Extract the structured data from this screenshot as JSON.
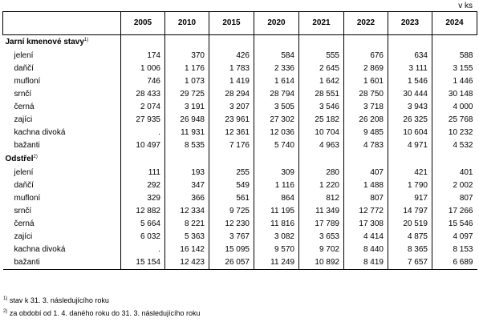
{
  "unit_label": "v ks",
  "years": [
    "2005",
    "2010",
    "2015",
    "2020",
    "2021",
    "2022",
    "2023",
    "2024"
  ],
  "sections": [
    {
      "title": "Jarní kmenové stavy",
      "note_ref": "1)",
      "rows": [
        {
          "label": "jelení",
          "values": [
            "174",
            "370",
            "426",
            "584",
            "555",
            "676",
            "634",
            "588"
          ]
        },
        {
          "label": "daňčí",
          "values": [
            "1 006",
            "1 176",
            "1 783",
            "2 336",
            "2 645",
            "2 869",
            "3 111",
            "3 155"
          ]
        },
        {
          "label": "mufloní",
          "values": [
            "746",
            "1 073",
            "1 419",
            "1 614",
            "1 642",
            "1 601",
            "1 546",
            "1 446"
          ]
        },
        {
          "label": "srnčí",
          "values": [
            "28 433",
            "29 725",
            "28 294",
            "28 794",
            "28 551",
            "28 750",
            "30 444",
            "30 148"
          ]
        },
        {
          "label": "černá",
          "values": [
            "2 074",
            "3 191",
            "3 207",
            "3 505",
            "3 546",
            "3 718",
            "3 943",
            "4 000"
          ]
        },
        {
          "label": "zajíci",
          "values": [
            "27 935",
            "26 948",
            "23 961",
            "27 302",
            "25 182",
            "26 208",
            "26 325",
            "25 768"
          ]
        },
        {
          "label": "kachna divoká",
          "values": [
            ".",
            "11 931",
            "12 361",
            "12 036",
            "10 704",
            "9 485",
            "10 604",
            "10 232"
          ]
        },
        {
          "label": "bažanti",
          "values": [
            "10 497",
            "8 535",
            "7 176",
            "5 740",
            "4 963",
            "4 783",
            "4 971",
            "4 532"
          ]
        }
      ]
    },
    {
      "title": "Odstřel",
      "note_ref": "2)",
      "rows": [
        {
          "label": "jelení",
          "values": [
            "111",
            "193",
            "255",
            "309",
            "280",
            "407",
            "421",
            "401"
          ]
        },
        {
          "label": "daňčí",
          "values": [
            "292",
            "347",
            "549",
            "1 116",
            "1 220",
            "1 488",
            "1 790",
            "2 002"
          ]
        },
        {
          "label": "mufloní",
          "values": [
            "329",
            "366",
            "561",
            "864",
            "812",
            "807",
            "917",
            "807"
          ]
        },
        {
          "label": "srnčí",
          "values": [
            "12 882",
            "12 334",
            "9 725",
            "11 195",
            "11 349",
            "12 772",
            "14 797",
            "17 266"
          ]
        },
        {
          "label": "černá",
          "values": [
            "5 664",
            "8 221",
            "12 230",
            "11 816",
            "17 789",
            "17 308",
            "20 519",
            "15 546"
          ]
        },
        {
          "label": "zajíci",
          "values": [
            "6 032",
            "5 363",
            "3 767",
            "3 082",
            "3 653",
            "4 414",
            "4 875",
            "4 097"
          ]
        },
        {
          "label": "kachna divoká",
          "values": [
            ".",
            "16 142",
            "15 095",
            "9 570",
            "9 702",
            "8 440",
            "8 365",
            "8 153"
          ]
        },
        {
          "label": "bažanti",
          "values": [
            "15 154",
            "12 423",
            "26 057",
            "11 249",
            "10 892",
            "8 419",
            "7 657",
            "6 689"
          ]
        }
      ]
    }
  ],
  "footnotes": [
    {
      "mark": "1)",
      "text": "stav k 31. 3. následujícího roku"
    },
    {
      "mark": "2)",
      "text": "za období od 1. 4. daného roku do 31. 3. následujícího roku"
    }
  ]
}
